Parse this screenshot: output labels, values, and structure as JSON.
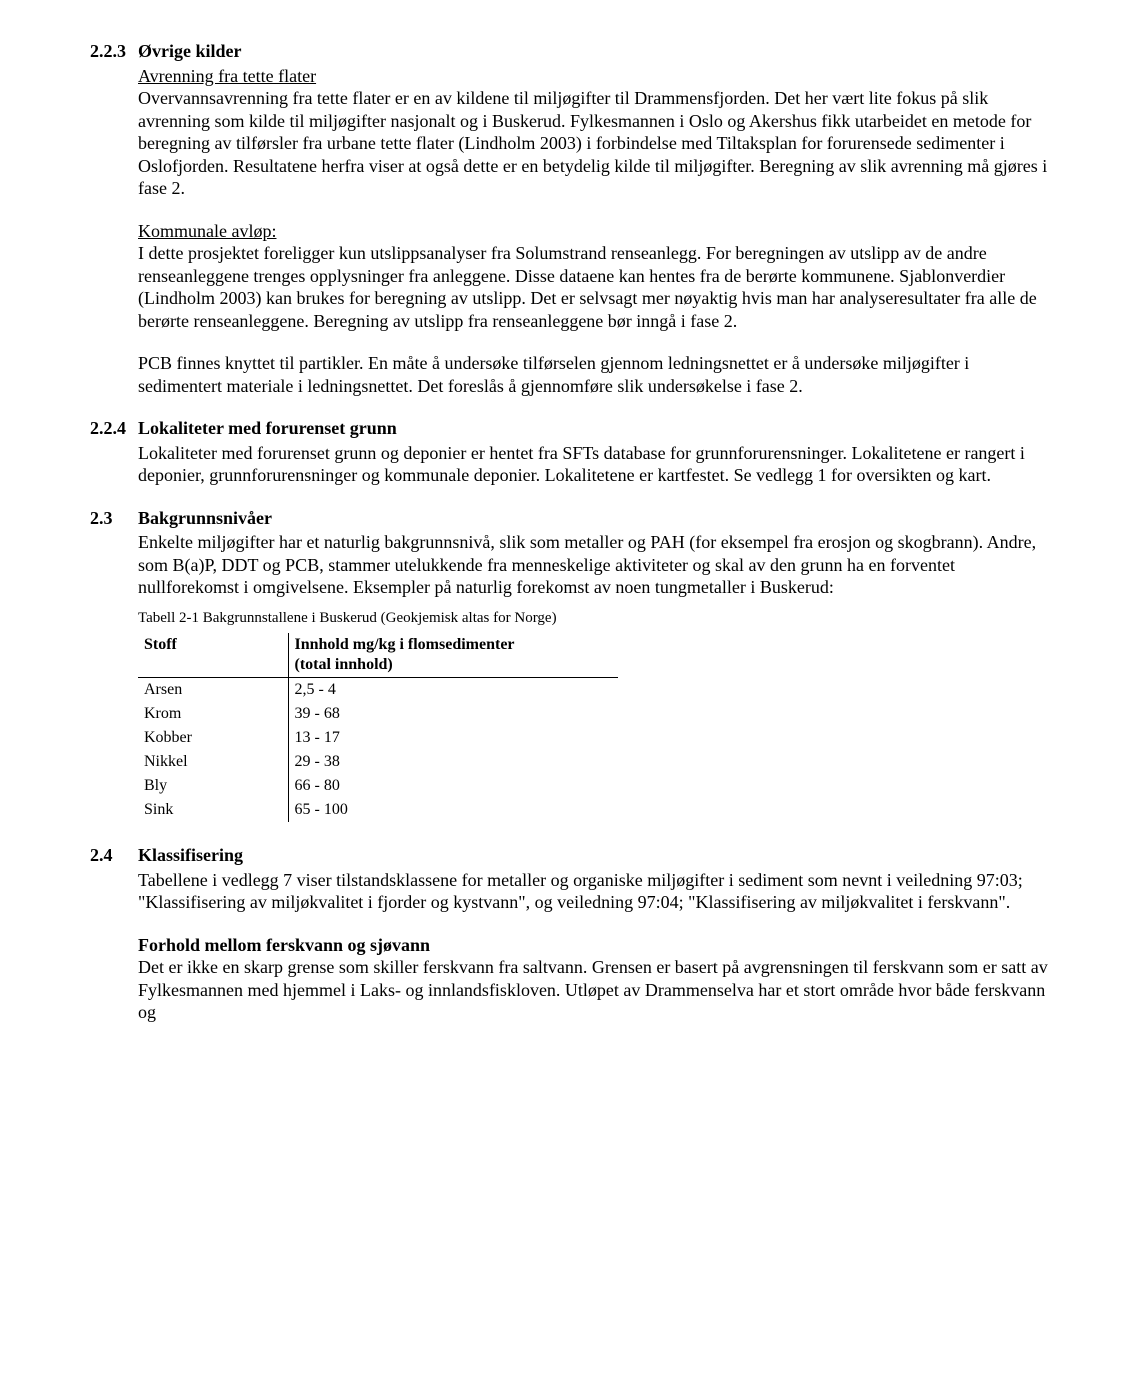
{
  "s223": {
    "num": "2.2.3",
    "title": "Øvrige kilder",
    "sub1_title": "Avrenning fra tette flater",
    "sub1_body": "Overvannsavrenning fra tette flater er en av kildene til miljøgifter til Drammensfjorden. Det her vært lite fokus på slik avrenning som kilde til miljøgifter nasjonalt og i Buskerud. Fylkesmannen i Oslo og Akershus fikk utarbeidet en metode for beregning av tilførsler fra urbane tette flater (Lindholm 2003) i forbindelse med Tiltaksplan for forurensede sedimenter i Oslofjorden. Resultatene herfra viser at også dette er en betydelig kilde til miljøgifter. Beregning av slik avrenning må gjøres i fase 2.",
    "sub2_title": "Kommunale avløp:",
    "sub2_body": "I dette prosjektet foreligger kun utslippsanalyser fra Solumstrand renseanlegg. For beregningen av utslipp av de andre renseanleggene trenges opplysninger fra anleggene. Disse dataene kan hentes fra de berørte kommunene. Sjablonverdier (Lindholm 2003) kan brukes for beregning av utslipp. Det er selvsagt mer nøyaktig hvis man har analyseresultater fra alle de berørte renseanleggene. Beregning av utslipp fra renseanleggene bør inngå i fase 2.",
    "p3": "PCB finnes knyttet til partikler. En måte å undersøke tilførselen gjennom ledningsnettet er å undersøke miljøgifter i sedimentert materiale i ledningsnettet. Det foreslås å gjennomføre slik undersøkelse i fase 2."
  },
  "s224": {
    "num": "2.2.4",
    "title": "Lokaliteter med forurenset grunn",
    "body": "Lokaliteter med forurenset grunn og deponier er hentet fra SFTs database for grunnforurensninger. Lokalitetene er rangert i deponier, grunnforurensninger og kommunale deponier. Lokalitetene er kartfestet. Se vedlegg 1 for oversikten og kart."
  },
  "s23": {
    "num": "2.3",
    "title": "Bakgrunnsnivåer",
    "body": "Enkelte miljøgifter har et naturlig bakgrunnsnivå, slik som metaller og PAH (for eksempel fra erosjon og skogbrann). Andre, som B(a)P, DDT og PCB, stammer utelukkende fra menneskelige aktiviteter og skal av den grunn ha en forventet nullforekomst i omgivelsene. Eksempler på naturlig forekomst av noen tungmetaller i Buskerud:"
  },
  "table": {
    "caption": "Tabell 2-1 Bakgrunnstallene i Buskerud (Geokjemisk altas for Norge)",
    "col1_header": "Stoff",
    "col2_header": "Innhold mg/kg i flomsedimenter",
    "col2_sub": "(total innhold)",
    "rows": [
      {
        "name": "Arsen",
        "val": "2,5 - 4"
      },
      {
        "name": "Krom",
        "val": "39 - 68"
      },
      {
        "name": "Kobber",
        "val": "13 - 17"
      },
      {
        "name": "Nikkel",
        "val": "29 - 38"
      },
      {
        "name": "Bly",
        "val": "66 - 80"
      },
      {
        "name": "Sink",
        "val": "65 - 100"
      }
    ]
  },
  "s24": {
    "num": "2.4",
    "title": "Klassifisering",
    "body": "Tabellene i vedlegg 7 viser tilstandsklassene for metaller og organiske miljøgifter i sediment som nevnt i veiledning 97:03; \"Klassifisering av miljøkvalitet i fjorder og kystvann\", og veiledning 97:04; \"Klassifisering av miljøkvalitet i ferskvann\".",
    "sub_title": "Forhold mellom ferskvann og sjøvann",
    "sub_body": "Det er ikke en skarp grense som skiller ferskvann fra saltvann. Grensen er basert på avgrensningen til ferskvann som er satt av Fylkesmannen med hjemmel i Laks- og innlandsfiskloven. Utløpet av Drammenselva har et stort område hvor både ferskvann og"
  }
}
